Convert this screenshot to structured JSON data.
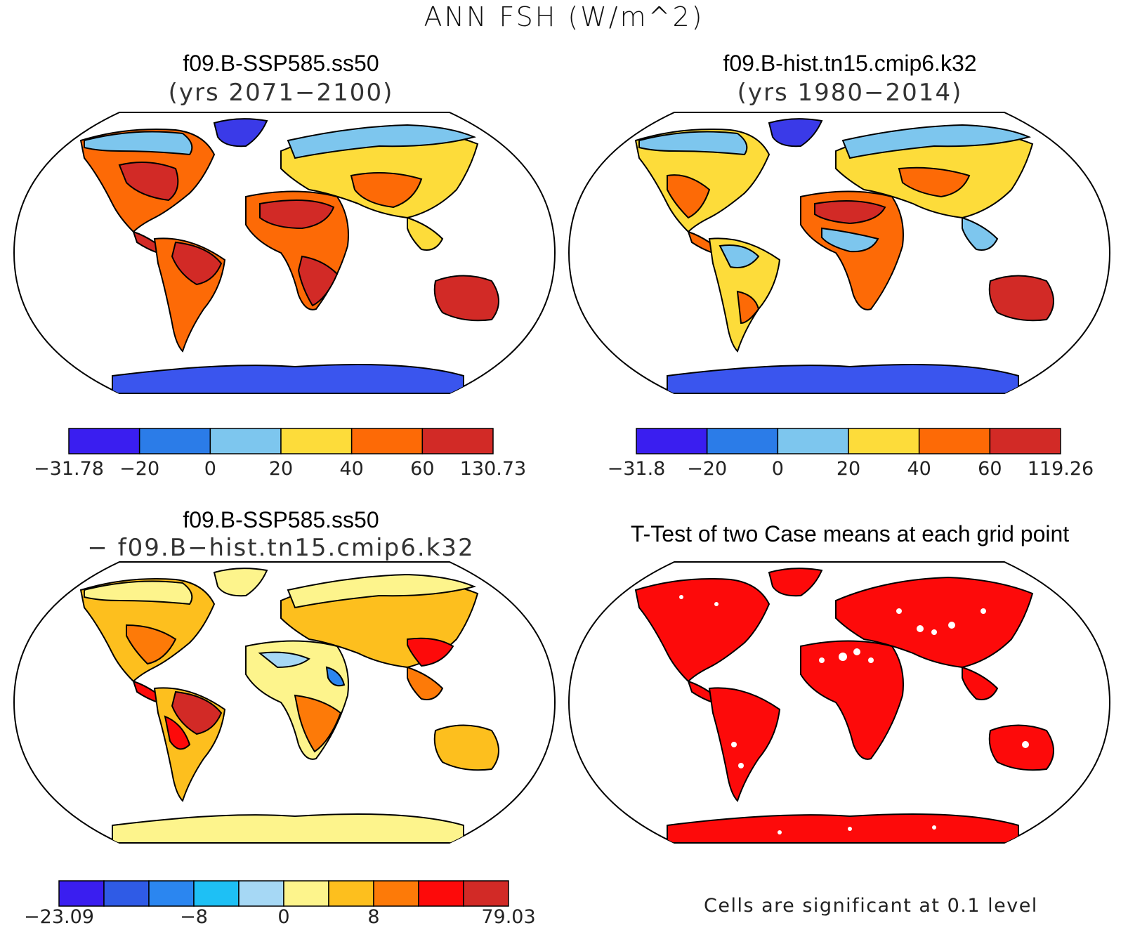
{
  "title": "ANN FSH (W/m^2)",
  "panels": [
    {
      "name": "panel-ssp585",
      "title": "f09.B-SSP585.ss50",
      "subtitle": "(yrs 2071−2100)",
      "colorbar": {
        "colors": [
          "#3a1ef0",
          "#2b7ce8",
          "#7dc6ee",
          "#fddc3a",
          "#fd6a06",
          "#d22a26"
        ],
        "labels": [
          "−31.78",
          "−20",
          "0",
          "20",
          "40",
          "60",
          "130.73"
        ]
      }
    },
    {
      "name": "panel-hist",
      "title": "f09.B-hist.tn15.cmip6.k32",
      "subtitle": "(yrs 1980−2014)",
      "colorbar": {
        "colors": [
          "#3a1ef0",
          "#2b7ce8",
          "#7dc6ee",
          "#fddc3a",
          "#fd6a06",
          "#d22a26"
        ],
        "labels": [
          "−31.8",
          "−20",
          "0",
          "20",
          "40",
          "60",
          "119.26"
        ]
      }
    },
    {
      "name": "panel-difference",
      "title": "f09.B-SSP585.ss50",
      "subtitle": "− f09.B−hist.tn15.cmip6.k32",
      "colorbar": {
        "colors": [
          "#3a1ef0",
          "#2f5be6",
          "#2b86f0",
          "#1ec0f5",
          "#a6d8f5",
          "#fdf48c",
          "#fdbf1e",
          "#fd7a08",
          "#fd0a0a",
          "#d22a26"
        ],
        "labels": [
          "−23.09",
          "−8",
          "0",
          "8",
          "79.03"
        ]
      }
    },
    {
      "name": "panel-ttest",
      "title": "T-Test of two Case means at each grid point",
      "footnote": "Cells are significant at 0.1 level"
    }
  ]
}
